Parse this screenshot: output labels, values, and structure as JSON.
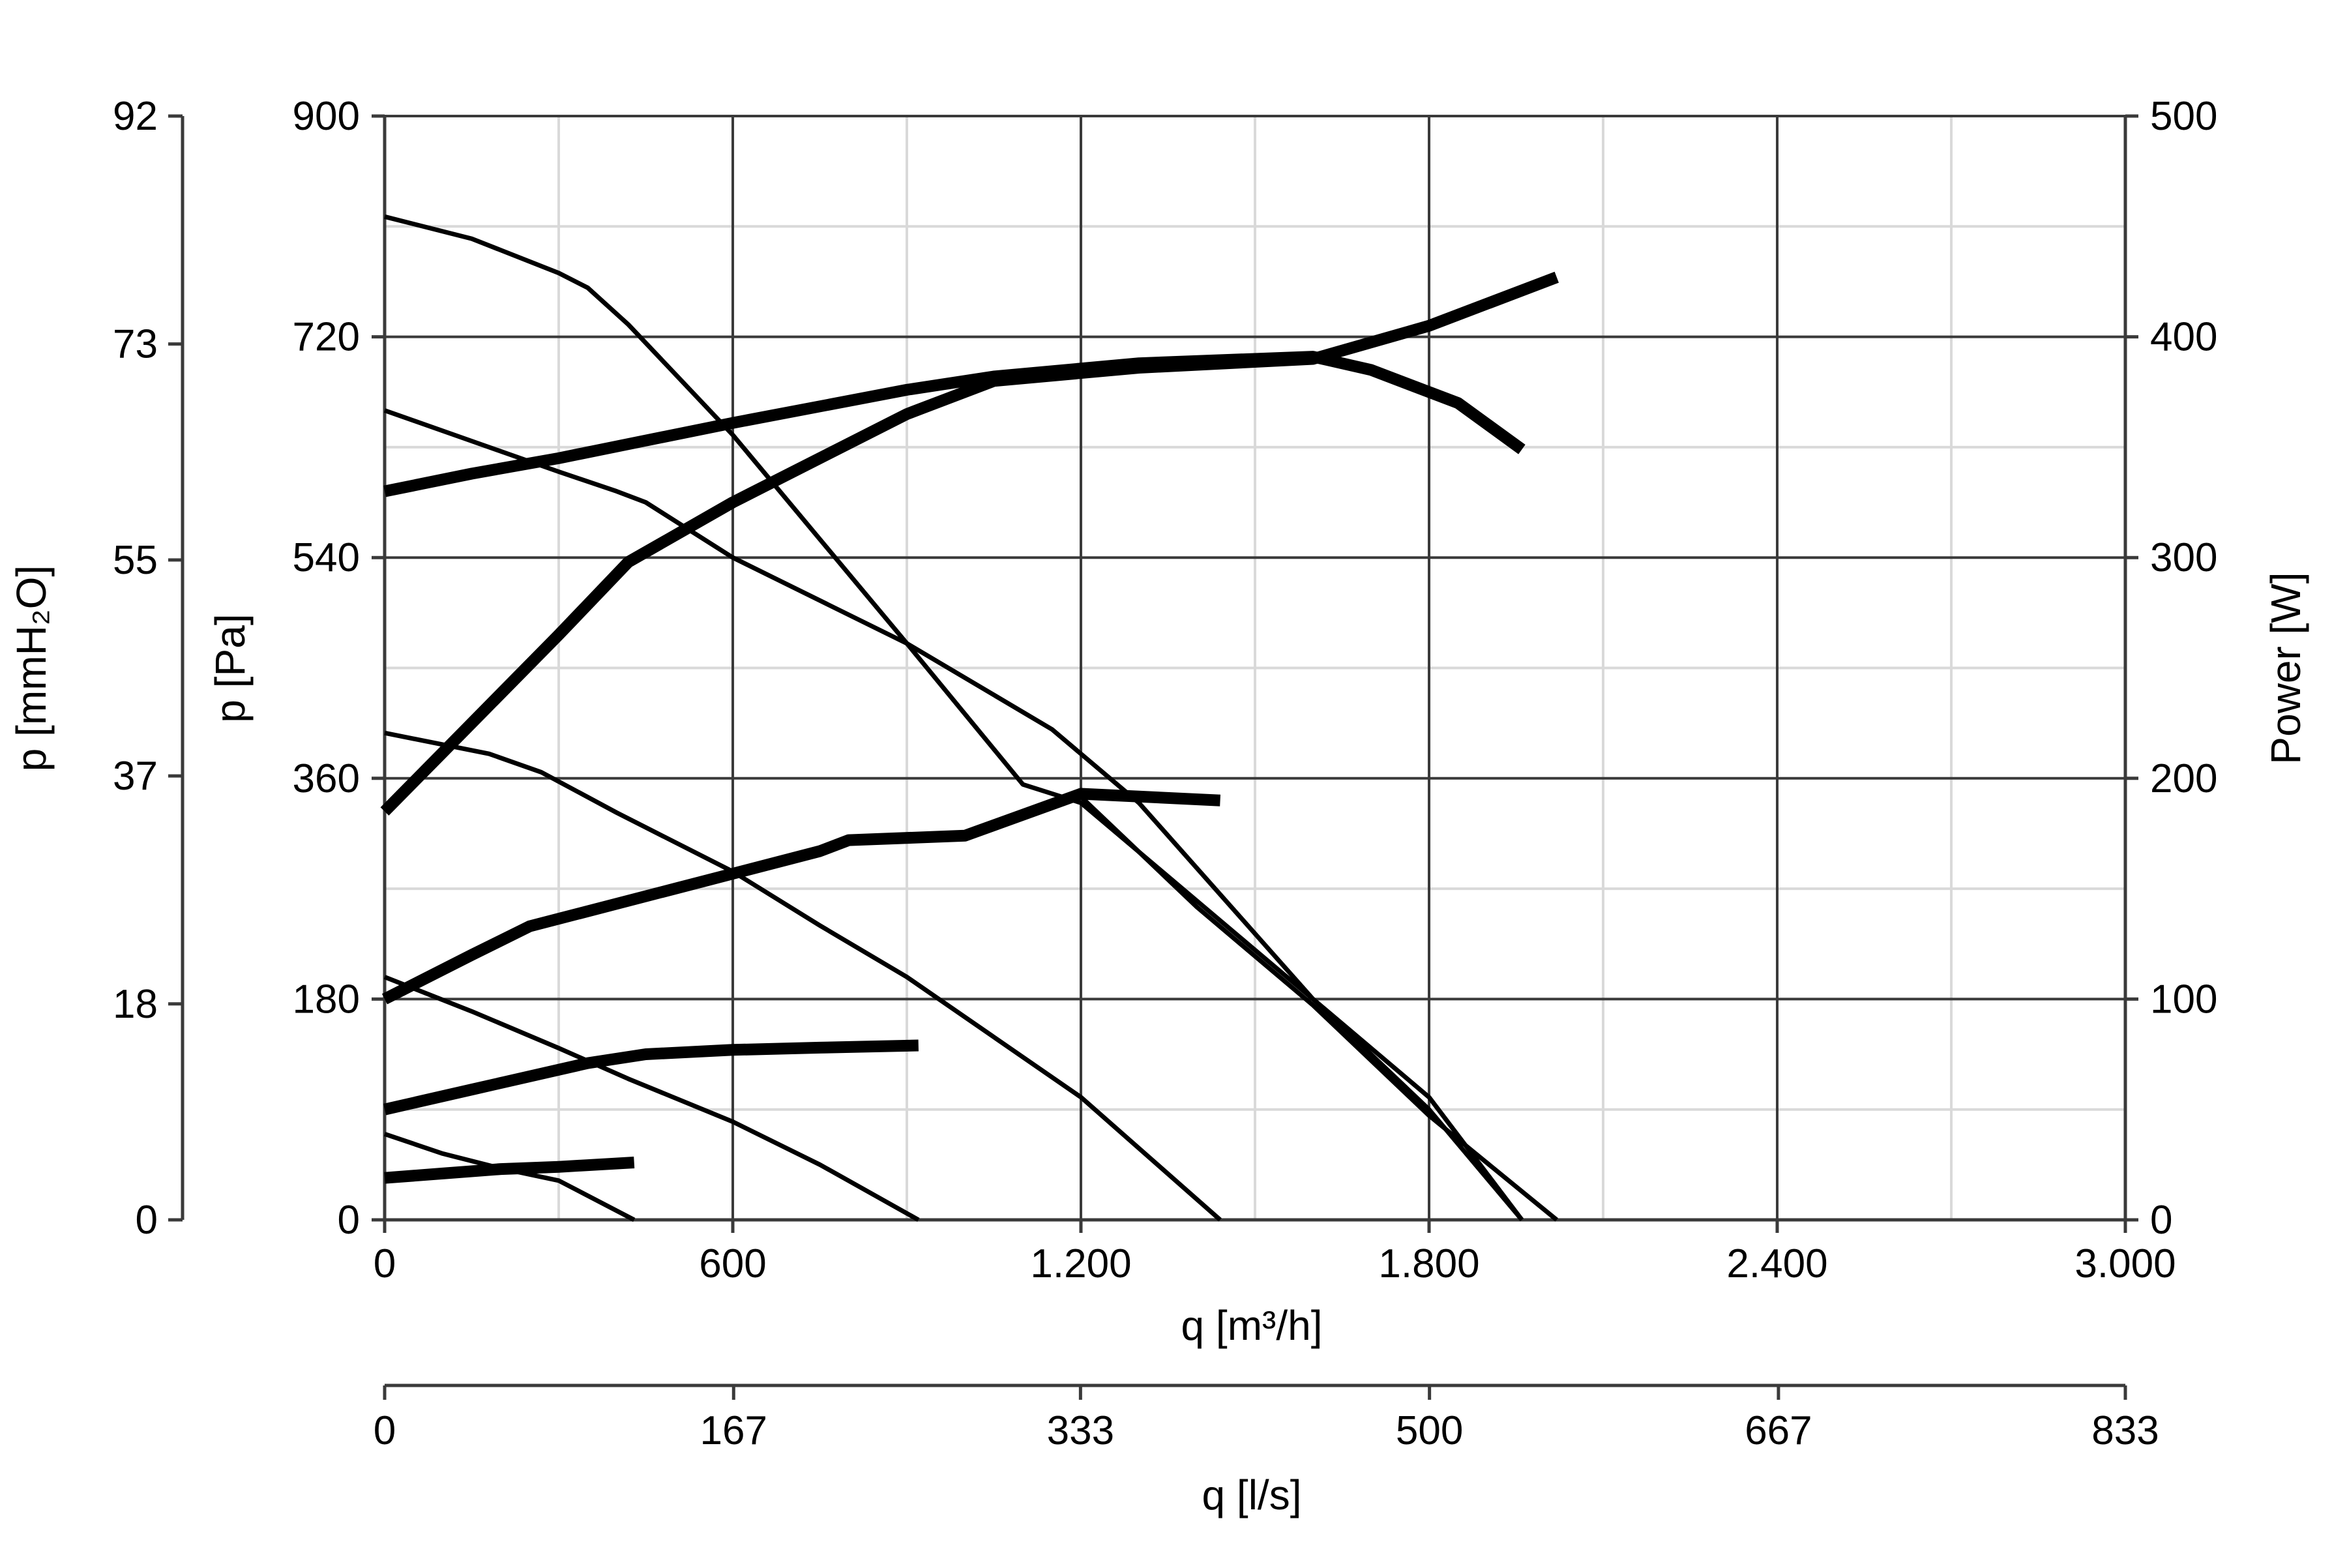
{
  "chart_data": {
    "type": "line",
    "x_axis": {
      "label": "q [m³/h]",
      "range": [
        0,
        3000
      ],
      "ticks": [
        0,
        600,
        1200,
        1800,
        2400,
        3000
      ],
      "tick_labels": [
        "0",
        "600",
        "1.200",
        "1.800",
        "2.400",
        "3.000"
      ],
      "minor_step": 300
    },
    "x_axis_secondary": {
      "label": "q [l/s]",
      "range": [
        0,
        833
      ],
      "ticks": [
        0,
        167,
        333,
        500,
        667,
        833
      ],
      "tick_labels": [
        "0",
        "167",
        "333",
        "500",
        "667",
        "833"
      ]
    },
    "y_axis": {
      "label": "p [Pa]",
      "range": [
        0,
        900
      ],
      "ticks": [
        0,
        180,
        360,
        540,
        720,
        900
      ],
      "tick_labels": [
        "0",
        "180",
        "360",
        "540",
        "720",
        "900"
      ],
      "minor_step": 90
    },
    "y_axis_outer": {
      "label": "p [mmH₂O]",
      "range": [
        0,
        92
      ],
      "ticks": [
        0,
        18,
        37,
        55,
        73,
        92
      ],
      "tick_labels": [
        "0",
        "18",
        "37",
        "55",
        "73",
        "92"
      ]
    },
    "y_axis_right": {
      "label": "Power [W]",
      "range": [
        0,
        500
      ],
      "ticks": [
        0,
        100,
        200,
        300,
        400,
        500
      ],
      "tick_labels": [
        "0",
        "100",
        "200",
        "300",
        "400",
        "500"
      ]
    },
    "grid": true,
    "pressure_curves": [
      {
        "x": [
          0,
          150,
          300,
          350,
          420,
          600,
          900,
          1100,
          1200,
          1600,
          1800,
          1960
        ],
        "y": [
          818,
          800,
          772,
          760,
          730,
          640,
          470,
          355,
          340,
          180,
          90,
          0
        ]
      },
      {
        "x": [
          0,
          150,
          300,
          400,
          450,
          600,
          900,
          1150,
          1300,
          1600,
          1800,
          1960
        ],
        "y": [
          660,
          635,
          610,
          594,
          585,
          540,
          470,
          400,
          340,
          180,
          100,
          0
        ]
      },
      {
        "x": [
          0,
          180,
          270,
          400,
          600,
          750,
          900,
          1200,
          1440
        ],
        "y": [
          397,
          380,
          365,
          332,
          284,
          240,
          198,
          100,
          0
        ]
      },
      {
        "x": [
          0,
          150,
          300,
          420,
          600,
          750,
          920
        ],
        "y": [
          198,
          170,
          140,
          115,
          80,
          45,
          0
        ]
      },
      {
        "x": [
          0,
          100,
          200,
          300,
          430
        ],
        "y": [
          70,
          54,
          42,
          32,
          0
        ]
      }
    ],
    "pressure_curve_extra": [
      {
        "x": [
          1200,
          1400,
          1600,
          1800,
          2020
        ],
        "y": [
          345,
          255,
          175,
          85,
          0
        ]
      }
    ],
    "power_curves": [
      {
        "x": [
          0,
          150,
          300,
          450,
          600,
          900,
          1050,
          1300,
          1600,
          1700,
          1850,
          1960
        ],
        "y": [
          330,
          338,
          345,
          353,
          361,
          376,
          382,
          388,
          391,
          385,
          370,
          349
        ]
      },
      {
        "x": [
          0,
          150,
          300,
          420,
          600,
          900,
          1050,
          1300,
          1600,
          1800,
          2020
        ],
        "y": [
          185,
          225,
          265,
          298,
          325,
          365,
          380,
          386,
          390,
          405,
          427
        ]
      },
      {
        "x": [
          0,
          150,
          250,
          500,
          750,
          800,
          1000,
          1200,
          1440
        ],
        "y": [
          100,
          120,
          133,
          150,
          167,
          172,
          174,
          193,
          190
        ]
      },
      {
        "x": [
          0,
          150,
          350,
          450,
          600,
          750,
          920
        ],
        "y": [
          50,
          59,
          71,
          75,
          77,
          78,
          79
        ]
      },
      {
        "x": [
          0,
          100,
          200,
          300,
          430
        ],
        "y": [
          19,
          21,
          23,
          24,
          26
        ]
      }
    ],
    "power_curves_detail": [
      {
        "x": [
          750,
          900,
          1100,
          1200,
          1300,
          1440
        ],
        "y": [
          183,
          186,
          190,
          192,
          191,
          190
        ]
      }
    ]
  }
}
